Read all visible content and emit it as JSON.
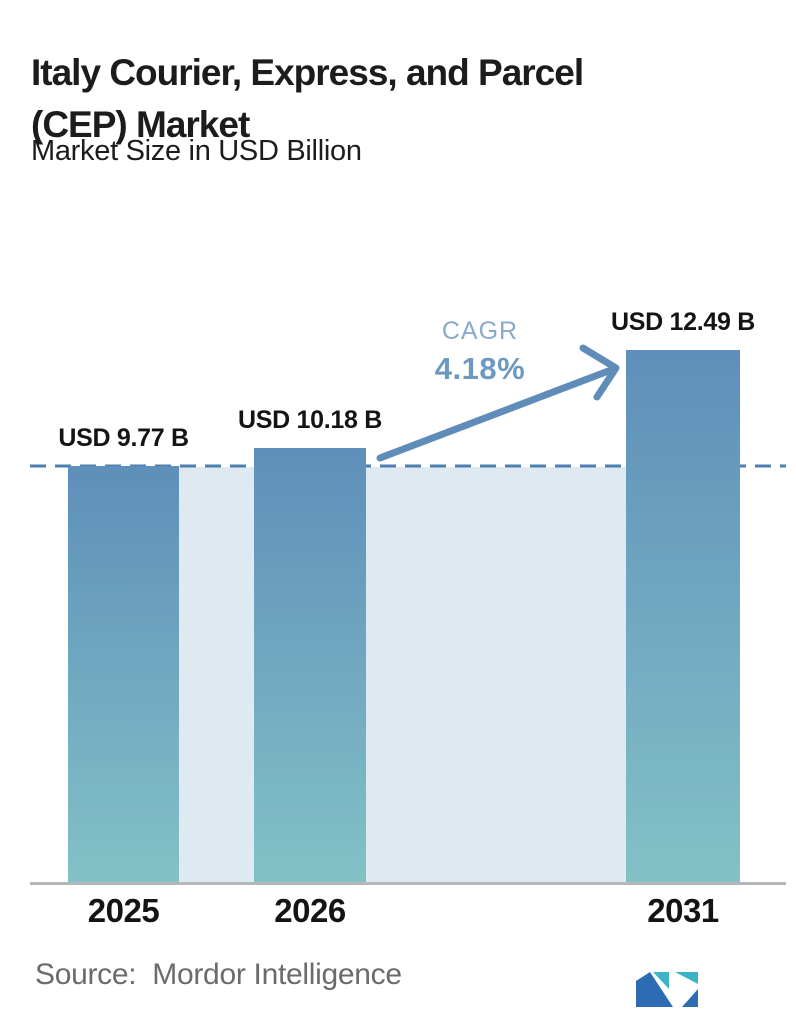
{
  "header": {
    "title_lines": [
      "Italy Courier, Express, and Parcel",
      "(CEP) Market"
    ],
    "subtitle": "Market Size in USD Billion"
  },
  "chart_data": {
    "type": "bar",
    "title": "Italy Courier, Express, and Parcel (CEP) Market",
    "subtitle": "Market Size in USD Billion",
    "unit": "USD Billion",
    "categories": [
      "2025",
      "2026",
      "2031"
    ],
    "values": [
      9.77,
      10.18,
      12.49
    ],
    "bar_labels": [
      "USD 9.77 B",
      "USD 10.18 B",
      "USD 12.49 B"
    ],
    "annotations": {
      "cagr_label": "CAGR",
      "cagr_value": "4.18%",
      "baseline_value": 9.77,
      "baseline_style": "dashed"
    },
    "ylim": [
      0,
      13.1
    ],
    "grid": false,
    "legend": "none",
    "colors": {
      "title": "#1c1c1c",
      "bar-top": "#5e8fba",
      "bar-bottom": "#83c1c6",
      "band": "#dfe9f1",
      "dashed-line": "#4d7fae",
      "arrow": "#5f8cb8",
      "cagr-label": "#88abcc",
      "cagr-value": "#6d99c1",
      "axis": "#b3b7ba",
      "year-label": "#141414",
      "value-label": "#141414",
      "source-text": "#6b6b6b",
      "logo-blue": "#2d6cb3",
      "logo-teal": "#3cb4c8"
    }
  },
  "footer": {
    "source_label": "Source:",
    "source_name": "Mordor Intelligence",
    "logo_name": "mordor-intelligence-logo"
  }
}
